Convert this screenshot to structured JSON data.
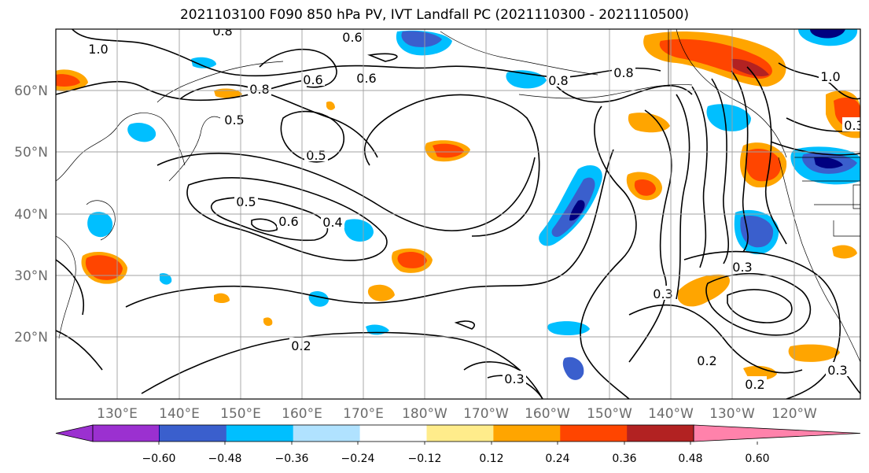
{
  "title": "2021103100 F090 850 hPa PV, IVT Landfall PC (2021110300 - 2021110500)",
  "lat_labels": [
    "60°N",
    "50°N",
    "40°N",
    "30°N",
    "20°N"
  ],
  "lon_labels": [
    "130°E",
    "140°E",
    "150°E",
    "160°E",
    "170°E",
    "180°W",
    "170°W",
    "160°W",
    "150°W",
    "140°W",
    "130°W",
    "120°W"
  ],
  "colorbar": {
    "ticks": [
      "−0.60",
      "−0.48",
      "−0.36",
      "−0.24",
      "−0.12",
      "0.12",
      "0.24",
      "0.36",
      "0.48",
      "0.60"
    ],
    "colors": [
      "#9b30d0",
      "#000080",
      "#3a5fcd",
      "#00bfff",
      "#b0e2ff",
      "#ffffff",
      "#ffec8b",
      "#ffa500",
      "#ff4500",
      "#b22222",
      "#ff82ab"
    ]
  },
  "contour_labels": [
    "0.8",
    "0.6",
    "1.0",
    "0.8",
    "0.6",
    "0.8",
    "0.6",
    "0.8",
    "0.5",
    "0.5",
    "0.5",
    "0.6",
    "0.4",
    "0.3",
    "0.3",
    "0.3",
    "0.2",
    "0.3",
    "0.2",
    "0.2",
    "0.3",
    "1.0"
  ]
}
